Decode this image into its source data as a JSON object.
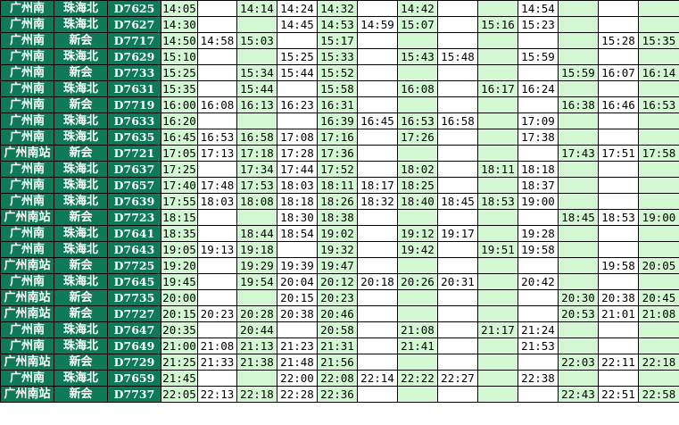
{
  "colors": {
    "header_bg": "#0f7a58",
    "header_text": "#ffffff",
    "alt_col_bg": "#d2f7d2",
    "plain_col_bg": "#ffffff"
  },
  "rows": [
    {
      "from": "广州南",
      "to": "珠海北",
      "train": "D7625",
      "times": [
        "14:05",
        "",
        "14:14",
        "14:24",
        "14:32",
        "",
        "14:42",
        "",
        "",
        "14:54",
        "",
        "",
        ""
      ]
    },
    {
      "from": "广州南",
      "to": "珠海北",
      "train": "D7627",
      "times": [
        "14:30",
        "",
        "",
        "14:45",
        "14:53",
        "14:59",
        "15:07",
        "",
        "15:16",
        "15:23",
        "",
        "",
        ""
      ]
    },
    {
      "from": "广州南",
      "to": "新会",
      "train": "D7717",
      "times": [
        "14:50",
        "14:58",
        "15:03",
        "",
        "15:17",
        "",
        "",
        "",
        "",
        "",
        "",
        "15:28",
        "15:35"
      ]
    },
    {
      "from": "广州南",
      "to": "珠海北",
      "train": "D7629",
      "times": [
        "15:10",
        "",
        "",
        "15:25",
        "15:33",
        "",
        "15:43",
        "15:48",
        "",
        "15:59",
        "",
        "",
        ""
      ]
    },
    {
      "from": "广州南",
      "to": "新会",
      "train": "D7733",
      "times": [
        "15:25",
        "",
        "15:34",
        "15:44",
        "15:52",
        "",
        "",
        "",
        "",
        "",
        "15:59",
        "16:07",
        "16:14"
      ]
    },
    {
      "from": "广州南",
      "to": "珠海北",
      "train": "D7631",
      "times": [
        "15:35",
        "",
        "15:44",
        "",
        "15:58",
        "",
        "16:08",
        "",
        "16:17",
        "16:24",
        "",
        "",
        ""
      ]
    },
    {
      "from": "广州南",
      "to": "新会",
      "train": "D7719",
      "times": [
        "16:00",
        "16:08",
        "16:13",
        "16:23",
        "16:31",
        "",
        "",
        "",
        "",
        "",
        "16:38",
        "16:46",
        "16:53"
      ]
    },
    {
      "from": "广州南",
      "to": "珠海北",
      "train": "D7633",
      "times": [
        "16:20",
        "",
        "",
        "",
        "16:39",
        "16:45",
        "16:53",
        "16:58",
        "",
        "17:09",
        "",
        "",
        ""
      ]
    },
    {
      "from": "广州南",
      "to": "珠海北",
      "train": "D7635",
      "times": [
        "16:45",
        "16:53",
        "16:58",
        "17:08",
        "17:16",
        "",
        "17:26",
        "",
        "",
        "17:38",
        "",
        "",
        ""
      ]
    },
    {
      "from": "广州南站",
      "to": "新会",
      "train": "D7721",
      "times": [
        "17:05",
        "17:13",
        "17:18",
        "17:28",
        "17:36",
        "",
        "",
        "",
        "",
        "",
        "17:43",
        "17:51",
        "17:58"
      ]
    },
    {
      "from": "广州南",
      "to": "珠海北",
      "train": "D7637",
      "times": [
        "17:25",
        "",
        "17:34",
        "17:44",
        "17:52",
        "",
        "18:02",
        "",
        "18:11",
        "18:18",
        "",
        "",
        ""
      ]
    },
    {
      "from": "广州南",
      "to": "珠海北",
      "train": "D7657",
      "times": [
        "17:40",
        "17:48",
        "17:53",
        "18:03",
        "18:11",
        "18:17",
        "18:25",
        "",
        "",
        "18:37",
        "",
        "",
        ""
      ]
    },
    {
      "from": "广州南",
      "to": "珠海北",
      "train": "D7639",
      "times": [
        "17:55",
        "18:03",
        "18:08",
        "18:18",
        "18:26",
        "18:32",
        "18:40",
        "18:45",
        "18:53",
        "19:00",
        "",
        "",
        ""
      ]
    },
    {
      "from": "广州南站",
      "to": "新会",
      "train": "D7723",
      "times": [
        "18:15",
        "",
        "",
        "18:30",
        "18:38",
        "",
        "",
        "",
        "",
        "",
        "18:45",
        "18:53",
        "19:00"
      ]
    },
    {
      "from": "广州南",
      "to": "珠海北",
      "train": "D7641",
      "times": [
        "18:35",
        "",
        "18:44",
        "18:54",
        "19:02",
        "",
        "19:12",
        "19:17",
        "",
        "19:28",
        "",
        "",
        ""
      ]
    },
    {
      "from": "广州南",
      "to": "珠海北",
      "train": "D7643",
      "times": [
        "19:05",
        "19:13",
        "19:18",
        "",
        "19:32",
        "",
        "19:42",
        "",
        "19:51",
        "19:58",
        "",
        "",
        ""
      ]
    },
    {
      "from": "广州南站",
      "to": "新会",
      "train": "D7725",
      "times": [
        "19:20",
        "",
        "19:29",
        "19:39",
        "19:47",
        "",
        "",
        "",
        "",
        "",
        "",
        "19:58",
        "20:05"
      ]
    },
    {
      "from": "广州南",
      "to": "珠海北",
      "train": "D7645",
      "times": [
        "19:45",
        "",
        "19:54",
        "20:04",
        "20:12",
        "20:18",
        "20:26",
        "20:31",
        "",
        "20:42",
        "",
        "",
        ""
      ]
    },
    {
      "from": "广州南站",
      "to": "新会",
      "train": "D7735",
      "times": [
        "20:00",
        "",
        "",
        "20:15",
        "20:23",
        "",
        "",
        "",
        "",
        "",
        "20:30",
        "20:38",
        "20:45"
      ]
    },
    {
      "from": "广州南站",
      "to": "新会",
      "train": "D7727",
      "times": [
        "20:15",
        "20:23",
        "20:28",
        "20:38",
        "20:46",
        "",
        "",
        "",
        "",
        "",
        "20:53",
        "21:01",
        "21:08"
      ]
    },
    {
      "from": "广州南",
      "to": "珠海北",
      "train": "D7647",
      "times": [
        "20:35",
        "",
        "20:44",
        "",
        "20:58",
        "",
        "21:08",
        "",
        "21:17",
        "21:24",
        "",
        "",
        ""
      ]
    },
    {
      "from": "广州南",
      "to": "珠海北",
      "train": "D7649",
      "times": [
        "21:00",
        "21:08",
        "21:13",
        "21:23",
        "21:31",
        "",
        "21:41",
        "",
        "",
        "21:53",
        "",
        "",
        ""
      ]
    },
    {
      "from": "广州南站",
      "to": "新会",
      "train": "D7729",
      "times": [
        "21:25",
        "21:33",
        "21:38",
        "21:48",
        "21:56",
        "",
        "",
        "",
        "",
        "",
        "22:03",
        "22:11",
        "22:18"
      ]
    },
    {
      "from": "广州南",
      "to": "珠海北",
      "train": "D7659",
      "times": [
        "21:45",
        "",
        "",
        "22:00",
        "22:08",
        "22:14",
        "22:22",
        "22:27",
        "",
        "22:38",
        "",
        "",
        ""
      ]
    },
    {
      "from": "广州南站",
      "to": "新会",
      "train": "D7737",
      "times": [
        "22:05",
        "22:13",
        "22:18",
        "22:28",
        "22:36",
        "",
        "",
        "",
        "",
        "",
        "22:43",
        "22:51",
        "22:58"
      ]
    }
  ]
}
